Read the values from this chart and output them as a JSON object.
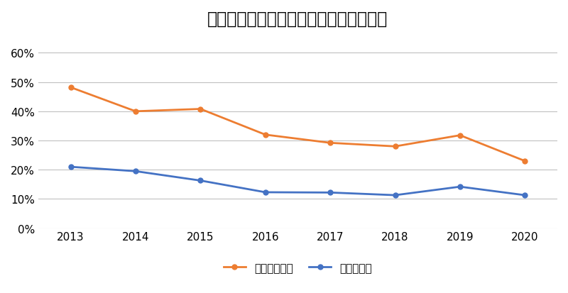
{
  "title": "新規ユーザーとリピーターの平均開封率",
  "years": [
    2013,
    2014,
    2015,
    2016,
    2017,
    2018,
    2019,
    2020
  ],
  "repeater": [
    0.21,
    0.195,
    0.163,
    0.123,
    0.122,
    0.113,
    0.142,
    0.113
  ],
  "new_user": [
    0.482,
    0.4,
    0.408,
    0.32,
    0.292,
    0.28,
    0.318,
    0.23
  ],
  "repeater_color": "#4472C4",
  "new_user_color": "#ED7D31",
  "repeater_label": "リピーター",
  "new_user_label": "新規ユーザー",
  "ylim": [
    0,
    0.65
  ],
  "yticks": [
    0.0,
    0.1,
    0.2,
    0.3,
    0.4,
    0.5,
    0.6
  ],
  "background_color": "#ffffff",
  "grid_color": "#c0c0c0",
  "title_fontsize": 17,
  "legend_fontsize": 11,
  "tick_fontsize": 11
}
